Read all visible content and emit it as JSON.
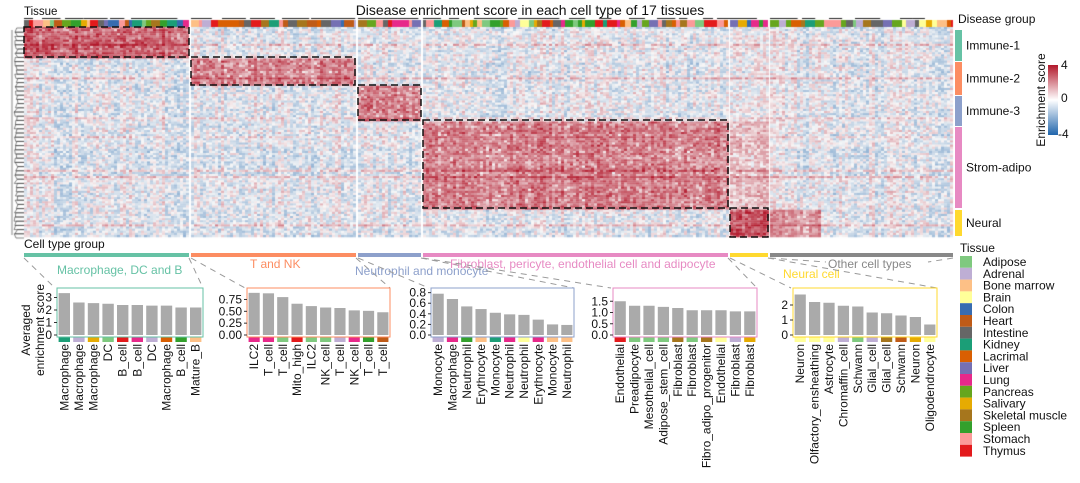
{
  "chart_data": {
    "type": "heatmap",
    "title": "Disease enrichment score in each cell type of 17 tissues",
    "column_annotation_title": "Tissue",
    "row_annotation_title": "Disease group",
    "cell_type_group_title": "Cell type group",
    "colorbar": {
      "title": "Enrichment score",
      "ticks": [
        "4",
        "0",
        "-4"
      ],
      "range": [
        -4,
        4
      ],
      "colors": {
        "low": "#2166ac",
        "mid": "#ffffff",
        "high": "#b2182b"
      }
    },
    "disease_groups": [
      {
        "name": "Immune-1",
        "color": "#66c2a5"
      },
      {
        "name": "Immune-2",
        "color": "#fc8d62"
      },
      {
        "name": "Immune-3",
        "color": "#8da0cb"
      },
      {
        "name": "Strom-adipo",
        "color": "#e78ac3"
      },
      {
        "name": "Neural",
        "color": "#ffd92f"
      }
    ],
    "cell_type_groups": [
      {
        "name": "Macrophage, DC and B",
        "color": "#66c2a5"
      },
      {
        "name": "T and NK",
        "color": "#fc8d62"
      },
      {
        "name": "Neutrophil and monocyte",
        "color": "#8da0cb"
      },
      {
        "name": "Fibroblast, pericyte, endothelial cell and adipocyte",
        "color": "#e78ac3"
      },
      {
        "name": "Neural cell",
        "color": "#ffd92f"
      },
      {
        "name": "Other cell types",
        "color": "#888888"
      }
    ],
    "tissue_legend": {
      "title": "Tissue",
      "items": [
        {
          "name": "Adipose",
          "color": "#7fc97f"
        },
        {
          "name": "Adrenal",
          "color": "#beaed4"
        },
        {
          "name": "Bone marrow",
          "color": "#fdc086"
        },
        {
          "name": "Brain",
          "color": "#ffff99"
        },
        {
          "name": "Colon",
          "color": "#386cb0"
        },
        {
          "name": "Heart",
          "color": "#bf5b17"
        },
        {
          "name": "Intestine",
          "color": "#666666"
        },
        {
          "name": "Kidney",
          "color": "#1b9e77"
        },
        {
          "name": "Lacrimal",
          "color": "#d95f02"
        },
        {
          "name": "Liver",
          "color": "#7570b3"
        },
        {
          "name": "Lung",
          "color": "#e7298a"
        },
        {
          "name": "Pancreas",
          "color": "#66a61e"
        },
        {
          "name": "Salivary",
          "color": "#e6ab02"
        },
        {
          "name": "Skeletal muscle",
          "color": "#a6761d"
        },
        {
          "name": "Spleen",
          "color": "#33a02c"
        },
        {
          "name": "Stomach",
          "color": "#fb9a99"
        },
        {
          "name": "Thymus",
          "color": "#e31a1c"
        }
      ]
    },
    "bar_ylabel": "Averaged enrichment score",
    "bar_panels": [
      {
        "group": "Macrophage, DC and B",
        "ylim": [
          0,
          3.6
        ],
        "ticks": [
          0,
          1,
          2,
          3
        ],
        "tick_labels": [
          "0",
          "1",
          "2",
          "3"
        ],
        "categories": [
          "Macrophage",
          "Macrophage",
          "Macrophage",
          "DC",
          "B_cell",
          "B_cell",
          "DC",
          "Macrophage",
          "B_cell",
          "Mature_B"
        ],
        "tissues": [
          "Kidney",
          "Adrenal",
          "Salivary",
          "Adipose",
          "Thymus",
          "Lung",
          "Adrenal",
          "Lacrimal",
          "Spleen",
          "Bone marrow"
        ],
        "values": [
          3.35,
          2.6,
          2.55,
          2.5,
          2.4,
          2.4,
          2.35,
          2.35,
          2.2,
          2.2
        ]
      },
      {
        "group": "T and NK",
        "ylim": [
          0,
          0.95
        ],
        "ticks": [
          0,
          0.25,
          0.5,
          0.75
        ],
        "tick_labels": [
          "0.00",
          "0.25",
          "0.50",
          "0.75"
        ],
        "categories": [
          "ILC2",
          "T_cell",
          "T_cell",
          "Mito_high",
          "ILC2",
          "NK_cell",
          "T_cell",
          "NK_cell",
          "T_cell",
          "T_cell"
        ],
        "tissues": [
          "Lung",
          "Lung",
          "Adipose",
          "Thymus",
          "Adipose",
          "Adipose",
          "Adrenal",
          "Lung",
          "Spleen",
          "Heart"
        ],
        "values": [
          0.89,
          0.88,
          0.8,
          0.66,
          0.61,
          0.58,
          0.57,
          0.52,
          0.51,
          0.48
        ]
      },
      {
        "group": "Neutrophil and monocyte",
        "ylim": [
          0,
          0.85
        ],
        "ticks": [
          0,
          0.2,
          0.4,
          0.6,
          0.8
        ],
        "tick_labels": [
          "0.0",
          "0.2",
          "0.4",
          "0.6",
          "0.8"
        ],
        "categories": [
          "Monocyte",
          "Macrophage",
          "Neutrophil",
          "Erythrocyte",
          "Monocyte",
          "Neutrophil",
          "Neutrophil",
          "Erythrocyte",
          "Monocyte",
          "Neutrophil"
        ],
        "tissues": [
          "Adrenal",
          "Lung",
          "Spleen",
          "Bone marrow",
          "Kidney",
          "Lung",
          "Brain",
          "Lung",
          "Bone marrow",
          "Bone marrow"
        ],
        "values": [
          0.78,
          0.68,
          0.54,
          0.49,
          0.42,
          0.39,
          0.38,
          0.29,
          0.2,
          0.19
        ]
      },
      {
        "group": "Fibroblast, pericyte, endothelial cell and adipocyte",
        "ylim": [
          0,
          2.0
        ],
        "ticks": [
          0,
          0.5,
          1.0,
          1.5
        ],
        "tick_labels": [
          "0.0",
          "0.5",
          "1.0",
          "1.5"
        ],
        "categories": [
          "Endothelial",
          "Preadipocyte",
          "Mesothelial_cell",
          "Adipose_stem_cell",
          "Fibroblast",
          "Fibroblast",
          "Fibro_adipo_progenitor",
          "Endothelial",
          "Fibroblast",
          "Fibroblast"
        ],
        "tissues": [
          "Thymus",
          "Adipose",
          "Adipose",
          "Adipose",
          "Skeletal muscle",
          "Adipose",
          "Skeletal muscle",
          "Brain",
          "Adrenal",
          "Salivary"
        ],
        "values": [
          1.5,
          1.3,
          1.3,
          1.25,
          1.2,
          1.1,
          1.1,
          1.1,
          1.05,
          1.05
        ]
      },
      {
        "group": "Neural cell",
        "ylim": [
          0,
          3.0
        ],
        "ticks": [
          0,
          1,
          2
        ],
        "tick_labels": [
          "0",
          "1",
          "2"
        ],
        "categories": [
          "Neuron",
          "Olfactory_ensheathing",
          "Astrocyte",
          "Chromaffin_cell",
          "Schwann",
          "Glial_cell",
          "Glial_cell",
          "Schwann",
          "Neuron",
          "Oligodendrocyte"
        ],
        "tissues": [
          "Brain",
          "Brain",
          "Brain",
          "Adrenal",
          "Adipose",
          "Adrenal",
          "Skeletal muscle",
          "Heart",
          "Salivary",
          "Brain"
        ],
        "values": [
          2.7,
          2.2,
          2.15,
          1.95,
          1.9,
          1.5,
          1.45,
          1.3,
          1.2,
          0.7
        ]
      }
    ]
  }
}
